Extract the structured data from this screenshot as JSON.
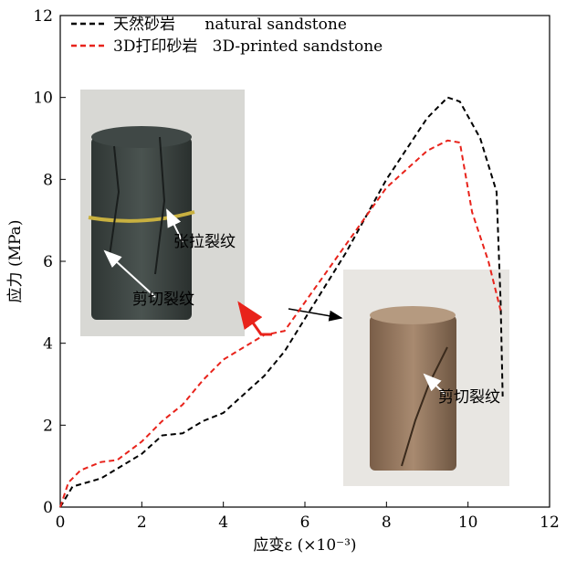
{
  "chart_data": {
    "type": "line",
    "x_label": "应变ε (×10⁻³)",
    "y_label": "应力 (MPa)",
    "xlim": [
      0,
      12
    ],
    "xticks": [
      0,
      2,
      4,
      6,
      8,
      10,
      12
    ],
    "ylim": [
      0,
      12
    ],
    "yticks": [
      0,
      2,
      4,
      6,
      8,
      10,
      12
    ],
    "legend": "upper left",
    "series": [
      {
        "name": "天然砂岩      natural sandstone",
        "color": "#000000",
        "x": [
          0,
          0.3,
          1,
          2,
          2.5,
          3,
          3.5,
          4,
          5,
          5.5,
          6,
          7,
          8,
          9,
          9.5,
          9.8,
          10.3,
          10.7,
          10.8,
          10.85
        ],
        "values": [
          0,
          0.5,
          0.7,
          1.3,
          1.75,
          1.8,
          2.1,
          2.3,
          3.2,
          3.8,
          4.6,
          6.2,
          8.0,
          9.5,
          10.0,
          9.9,
          9.0,
          7.7,
          5.0,
          2.7
        ]
      },
      {
        "name": "3D打印砂岩   3D-printed sandstone",
        "color": "#e8231b",
        "x": [
          0,
          0.2,
          0.5,
          1,
          1.4,
          2,
          2.5,
          3,
          3.5,
          4,
          4.5,
          5,
          5.5,
          6,
          7,
          8,
          9,
          9.5,
          9.8,
          10.1,
          10.5,
          10.8
        ],
        "values": [
          0,
          0.6,
          0.9,
          1.1,
          1.15,
          1.6,
          2.1,
          2.5,
          3.1,
          3.6,
          3.9,
          4.2,
          4.3,
          5.0,
          6.4,
          7.8,
          8.7,
          8.95,
          8.9,
          7.2,
          6.0,
          4.8
        ]
      }
    ],
    "annotations": [
      "张拉裂纹",
      "剪切裂纹",
      "剪切裂纹"
    ]
  }
}
